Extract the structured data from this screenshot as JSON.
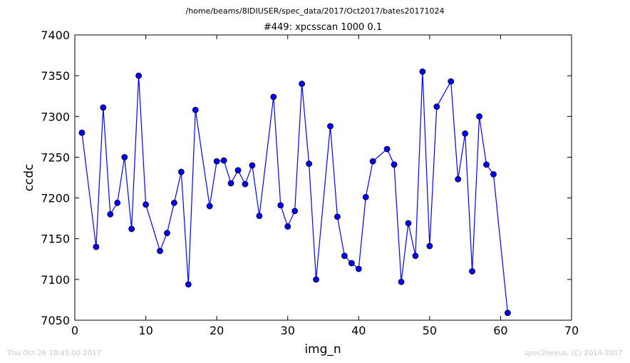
{
  "chart_data": {
    "type": "line",
    "suptitle": "/home/beams/8IDIUSER/spec_data/2017/Oct2017/bates20171024",
    "title": "#449: xpcsscan 1000 0.1",
    "xlabel": "img_n",
    "ylabel": "ccdc",
    "xlim": [
      0,
      70
    ],
    "ylim": [
      7050,
      7400
    ],
    "xticks": [
      0,
      10,
      20,
      30,
      40,
      50,
      60,
      70
    ],
    "yticks": [
      7050,
      7100,
      7150,
      7200,
      7250,
      7300,
      7350,
      7400
    ],
    "grid": false,
    "series": [
      {
        "color": "#0000ff",
        "marker": "circle",
        "points": [
          [
            1,
            7280
          ],
          [
            3,
            7140
          ],
          [
            4,
            7311
          ],
          [
            5,
            7180
          ],
          [
            6,
            7194
          ],
          [
            7,
            7250
          ],
          [
            8,
            7162
          ],
          [
            9,
            7350
          ],
          [
            10,
            7192
          ],
          [
            12,
            7135
          ],
          [
            13,
            7157
          ],
          [
            14,
            7194
          ],
          [
            15,
            7232
          ],
          [
            16,
            7094
          ],
          [
            17,
            7308
          ],
          [
            19,
            7190
          ],
          [
            20,
            7245
          ],
          [
            21,
            7246
          ],
          [
            22,
            7218
          ],
          [
            23,
            7234
          ],
          [
            24,
            7217
          ],
          [
            25,
            7240
          ],
          [
            26,
            7178
          ],
          [
            28,
            7324
          ],
          [
            29,
            7191
          ],
          [
            30,
            7165
          ],
          [
            31,
            7184
          ],
          [
            32,
            7340
          ],
          [
            33,
            7242
          ],
          [
            34,
            7100
          ],
          [
            36,
            7288
          ],
          [
            37,
            7177
          ],
          [
            38,
            7129
          ],
          [
            39,
            7120
          ],
          [
            40,
            7113
          ],
          [
            41,
            7201
          ],
          [
            42,
            7245
          ],
          [
            44,
            7260
          ],
          [
            45,
            7241
          ],
          [
            46,
            7097
          ],
          [
            47,
            7169
          ],
          [
            48,
            7129
          ],
          [
            49,
            7355
          ],
          [
            50,
            7141
          ],
          [
            51,
            7312
          ],
          [
            53,
            7343
          ],
          [
            54,
            7223
          ],
          [
            55,
            7279
          ],
          [
            56,
            7110
          ],
          [
            57,
            7300
          ],
          [
            58,
            7241
          ],
          [
            59,
            7229
          ],
          [
            61,
            7059
          ]
        ]
      }
    ]
  },
  "footer": {
    "timestamp": "Thu Oct 26 18:45:00 2017",
    "credit": "spec2nexus, (C) 2014-2017"
  }
}
